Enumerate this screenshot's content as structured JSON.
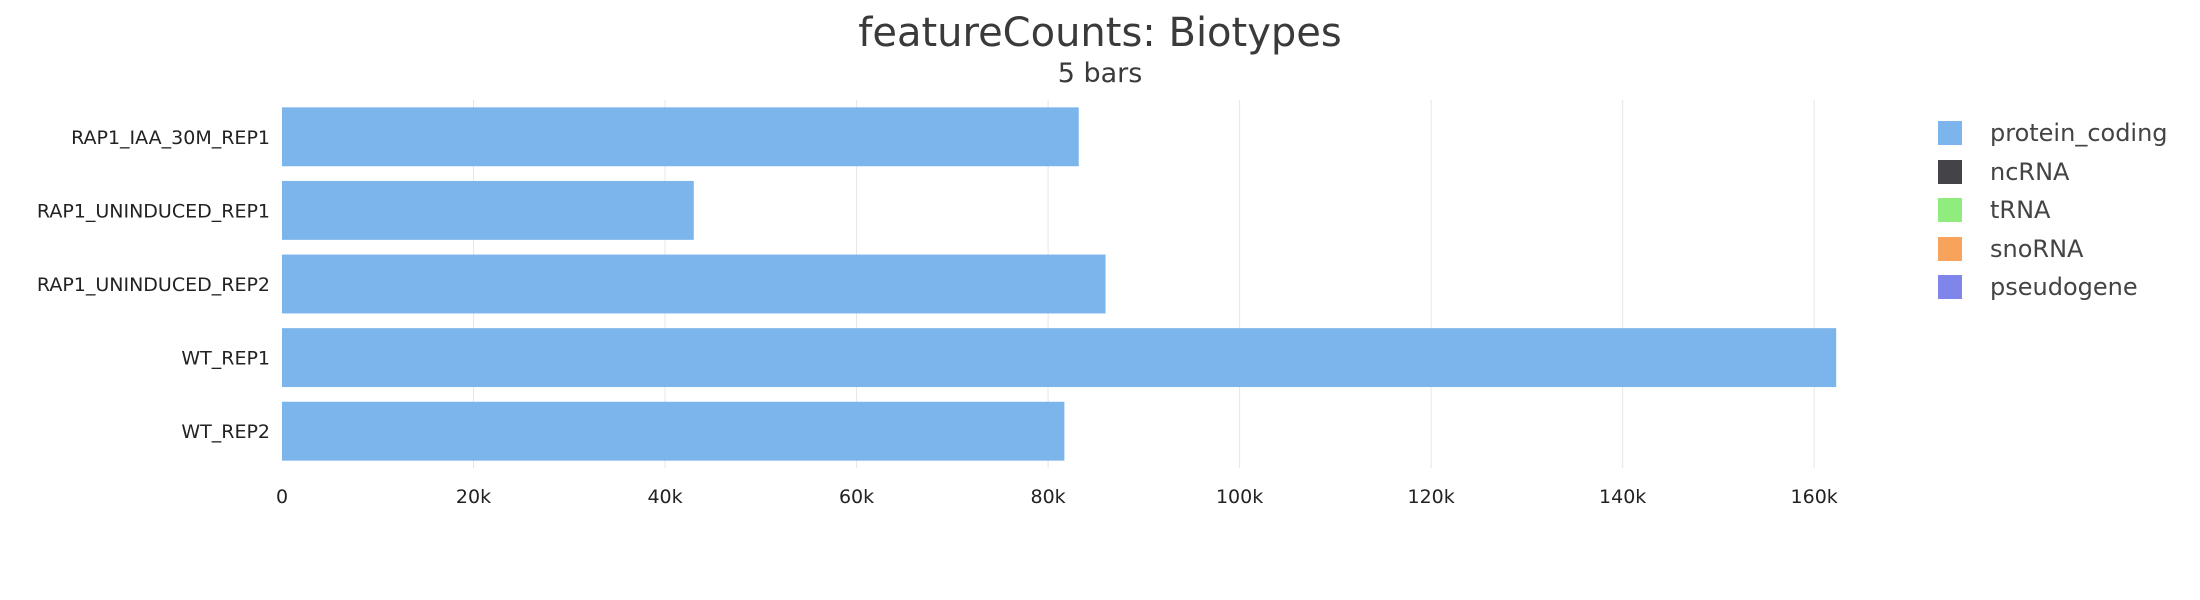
{
  "chart_data": {
    "type": "bar",
    "orientation": "horizontal",
    "stacked": true,
    "title": "featureCounts: Biotypes",
    "subtitle": "5 bars",
    "xlabel": "",
    "ylabel": "",
    "categories": [
      "RAP1_IAA_30M_REP1",
      "RAP1_UNINDUCED_REP1",
      "RAP1_UNINDUCED_REP2",
      "WT_REP1",
      "WT_REP2"
    ],
    "series": [
      {
        "name": "protein_coding",
        "color": "#7cb5ec",
        "values": [
          83200,
          43000,
          86000,
          162300,
          81700
        ]
      },
      {
        "name": "ncRNA",
        "color": "#434348",
        "values": [
          0,
          0,
          0,
          0,
          0
        ]
      },
      {
        "name": "tRNA",
        "color": "#90ed7d",
        "values": [
          0,
          0,
          0,
          0,
          0
        ]
      },
      {
        "name": "snoRNA",
        "color": "#f7a35c",
        "values": [
          0,
          0,
          0,
          0,
          0
        ]
      },
      {
        "name": "pseudogene",
        "color": "#8085e9",
        "values": [
          0,
          0,
          0,
          0,
          0
        ]
      }
    ],
    "xlim": [
      0,
      167500
    ],
    "xticks": [
      0,
      20000,
      40000,
      60000,
      80000,
      100000,
      120000,
      140000,
      160000
    ],
    "xtick_labels": [
      "0",
      "20k",
      "40k",
      "60k",
      "80k",
      "100k",
      "120k",
      "140k",
      "160k"
    ],
    "grid": true,
    "legend_position": "right"
  }
}
